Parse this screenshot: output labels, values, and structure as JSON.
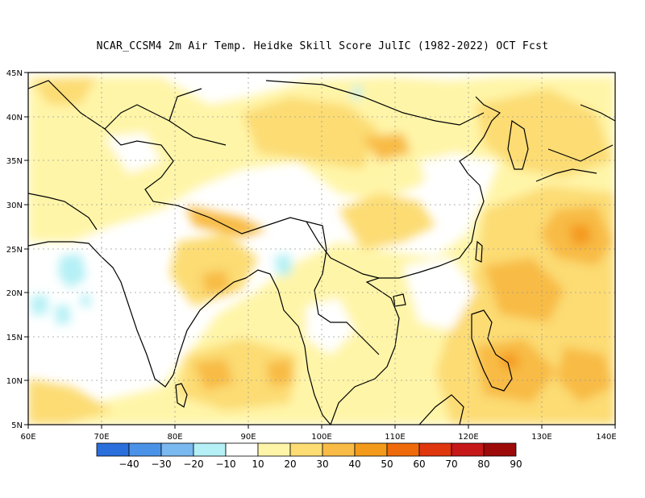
{
  "title": "NCAR_CCSM4  2m Air Temp. Heidke Skill Score JulIC (1982-2022) OCT Fcst",
  "lat_labels": [
    "45N",
    "40N",
    "35N",
    "30N",
    "25N",
    "20N",
    "15N",
    "10N",
    "5N"
  ],
  "lon_labels": [
    "60E",
    "70E",
    "80E",
    "90E",
    "100E",
    "110E",
    "120E",
    "130E",
    "140E"
  ],
  "map_extent": {
    "lon": [
      60,
      140
    ],
    "lat": [
      5,
      45
    ]
  },
  "colorbar": {
    "colors": [
      "#2a6fdb",
      "#4a92e8",
      "#7ab8f0",
      "#b4f0f5",
      "#ffffff",
      "#fff5a8",
      "#fcdc73",
      "#f8bb45",
      "#f49a1a",
      "#ef6a0a",
      "#e0360e",
      "#c61818",
      "#9c0a0a"
    ],
    "labels": [
      "-40",
      "-30",
      "-20",
      "-10",
      "10",
      "20",
      "30",
      "40",
      "50",
      "60",
      "70",
      "80",
      "90"
    ]
  }
}
